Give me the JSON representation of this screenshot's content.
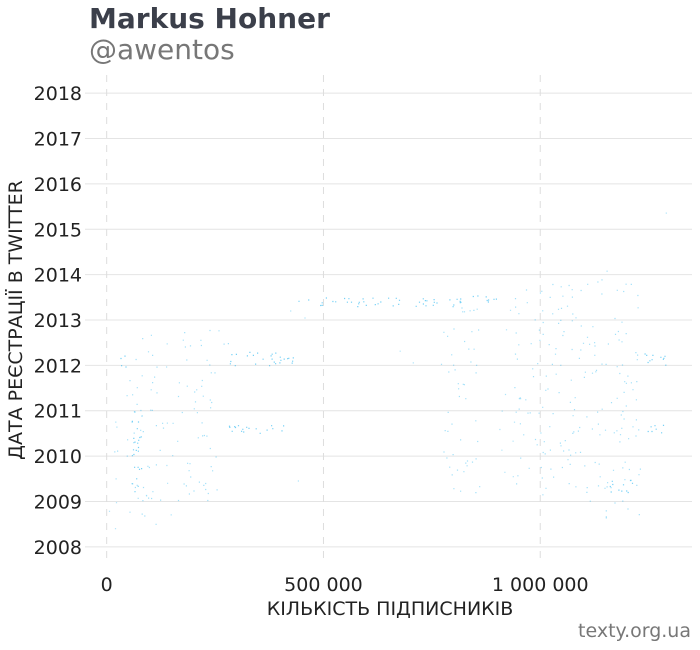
{
  "header": {
    "title": "Markus Hohner",
    "handle": "@awentos"
  },
  "footer": {
    "source": "texty.org.ua"
  },
  "chart_data": {
    "type": "scatter",
    "xlabel": "КІЛЬКІСТЬ ПІДПИСНИКІВ",
    "ylabel": "ДАТА РЕЄСТРАЦІЇ В TWITTER",
    "xlim": [
      -50000,
      1350000
    ],
    "ylim": [
      2007.6,
      2018.4
    ],
    "x_ticks": [
      {
        "value": 0,
        "label": "0"
      },
      {
        "value": 500000,
        "label": "500 000"
      },
      {
        "value": 1000000,
        "label": "1 000 000"
      }
    ],
    "y_ticks": [
      {
        "value": 2008,
        "label": "2008"
      },
      {
        "value": 2009,
        "label": "2009"
      },
      {
        "value": 2010,
        "label": "2010"
      },
      {
        "value": 2011,
        "label": "2011"
      },
      {
        "value": 2012,
        "label": "2012"
      },
      {
        "value": 2013,
        "label": "2013"
      },
      {
        "value": 2014,
        "label": "2014"
      },
      {
        "value": 2015,
        "label": "2015"
      },
      {
        "value": 2016,
        "label": "2016"
      },
      {
        "value": 2017,
        "label": "2017"
      },
      {
        "value": 2018,
        "label": "2018"
      }
    ],
    "grid": "horizontal solid, vertical dashed",
    "point_color": "#1ab2f0",
    "point_clusters": [
      {
        "x": [
          0,
          30000
        ],
        "y": [
          2008.4,
          2011.8
        ],
        "density": "medium"
      },
      {
        "x": [
          0,
          30000
        ],
        "y": [
          2009.8,
          2010.2
        ],
        "density": "high"
      },
      {
        "x": [
          30000,
          45000
        ],
        "y": [
          2011.9,
          2012.4
        ],
        "density": "very high"
      },
      {
        "x": [
          45000,
          130000
        ],
        "y": [
          2008.5,
          2012.7
        ],
        "density": "high"
      },
      {
        "x": [
          55000,
          80000
        ],
        "y": [
          2009.2,
          2011.0
        ],
        "density": "very high"
      },
      {
        "x": [
          130000,
          160000
        ],
        "y": [
          2008.6,
          2013.1
        ],
        "density": "medium"
      },
      {
        "x": [
          160000,
          260000
        ],
        "y": [
          2009.0,
          2012.9
        ],
        "density": "high"
      },
      {
        "x": [
          260000,
          280000
        ],
        "y": [
          2012.2,
          2013.1
        ],
        "density": "high"
      },
      {
        "x": [
          280000,
          430000
        ],
        "y": [
          2012.0,
          2012.3
        ],
        "density": "very high"
      },
      {
        "x": [
          280000,
          430000
        ],
        "y": [
          2010.5,
          2010.7
        ],
        "density": "very high"
      },
      {
        "x": [
          420000,
          460000
        ],
        "y": [
          2009.2,
          2013.4
        ],
        "density": "low"
      },
      {
        "x": [
          440000,
          830000
        ],
        "y": [
          2013.3,
          2013.5
        ],
        "density": "very high"
      },
      {
        "x": [
          620000,
          770000
        ],
        "y": [
          2011.9,
          2012.7
        ],
        "density": "low"
      },
      {
        "x": [
          770000,
          860000
        ],
        "y": [
          2009.2,
          2013.3
        ],
        "density": "high"
      },
      {
        "x": [
          830000,
          900000
        ],
        "y": [
          2013.4,
          2013.6
        ],
        "density": "very high"
      },
      {
        "x": [
          900000,
          940000
        ],
        "y": [
          2009.2,
          2013.5
        ],
        "density": "medium"
      },
      {
        "x": [
          940000,
          1060000
        ],
        "y": [
          2009.0,
          2013.8
        ],
        "density": "high"
      },
      {
        "x": [
          1060000,
          1130000
        ],
        "y": [
          2008.8,
          2013.9
        ],
        "density": "high"
      },
      {
        "x": [
          1130000,
          1230000
        ],
        "y": [
          2008.5,
          2014.1
        ],
        "density": "high"
      },
      {
        "x": [
          1160000,
          1230000
        ],
        "y": [
          2009.2,
          2009.5
        ],
        "density": "very high"
      },
      {
        "x": [
          1230000,
          1290000
        ],
        "y": [
          2012.0,
          2012.3
        ],
        "density": "very high"
      },
      {
        "x": [
          1230000,
          1290000
        ],
        "y": [
          2010.5,
          2010.7
        ],
        "density": "very high"
      },
      {
        "x": [
          1285000,
          1295000
        ],
        "y": [
          2013.9,
          2018.1
        ],
        "density": "low"
      }
    ]
  }
}
